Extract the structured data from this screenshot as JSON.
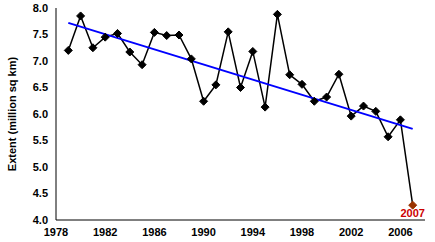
{
  "chart_data": {
    "type": "line",
    "y_label": "Extent (million sq km)",
    "x": [
      1979,
      1980,
      1981,
      1982,
      1983,
      1984,
      1985,
      1986,
      1987,
      1988,
      1989,
      1990,
      1991,
      1992,
      1993,
      1994,
      1995,
      1996,
      1997,
      1998,
      1999,
      2000,
      2001,
      2002,
      2003,
      2004,
      2005,
      2006,
      2007
    ],
    "series": [
      {
        "values": [
          7.2,
          7.85,
          7.25,
          7.45,
          7.52,
          7.17,
          6.93,
          7.54,
          7.48,
          7.49,
          7.04,
          6.24,
          6.55,
          7.55,
          6.5,
          7.18,
          6.13,
          7.88,
          6.74,
          6.56,
          6.24,
          6.32,
          6.75,
          5.96,
          6.15,
          6.05,
          5.57,
          5.89,
          4.28
        ],
        "color": "#000000",
        "colors": [
          "#000000",
          "#000000",
          "#000000",
          "#000000",
          "#000000",
          "#000000",
          "#000000",
          "#000000",
          "#000000",
          "#000000",
          "#000000",
          "#000000",
          "#000000",
          "#000000",
          "#000000",
          "#000000",
          "#000000",
          "#000000",
          "#000000",
          "#000000",
          "#000000",
          "#000000",
          "#000000",
          "#000000",
          "#000000",
          "#000000",
          "#000000",
          "#000000",
          "#993300"
        ],
        "marker": "diamond",
        "line_style": "solid"
      },
      {
        "values": [
          7.72,
          null,
          null,
          null,
          null,
          null,
          null,
          null,
          null,
          null,
          null,
          null,
          null,
          null,
          null,
          null,
          null,
          null,
          null,
          null,
          null,
          null,
          null,
          null,
          null,
          null,
          null,
          null,
          5.72
        ],
        "color": "#0000ff",
        "marker": "none",
        "line_style": "solid"
      }
    ],
    "xlim": [
      1978,
      2008
    ],
    "xticks": [
      1978,
      1982,
      1986,
      1990,
      1994,
      1998,
      2002,
      2006
    ],
    "ylim": [
      4.0,
      8.0
    ],
    "yticks": [
      {
        "value": 4.0,
        "label": "4.0"
      },
      {
        "value": 4.5,
        "label": "4.5"
      },
      {
        "value": 5.0,
        "label": "5.0"
      },
      {
        "value": 5.5,
        "label": "5.5"
      },
      {
        "value": 6.0,
        "label": "6.0"
      },
      {
        "value": 6.5,
        "label": "6.5"
      },
      {
        "value": 7.0,
        "label": "7.0"
      },
      {
        "value": 7.5,
        "label": "7.5"
      },
      {
        "value": 8.0,
        "label": "8.0"
      }
    ],
    "grid": false,
    "annotations": [
      {
        "text": "2007",
        "x": 2007,
        "y": 4.28,
        "color": "#cc0000"
      }
    ]
  }
}
